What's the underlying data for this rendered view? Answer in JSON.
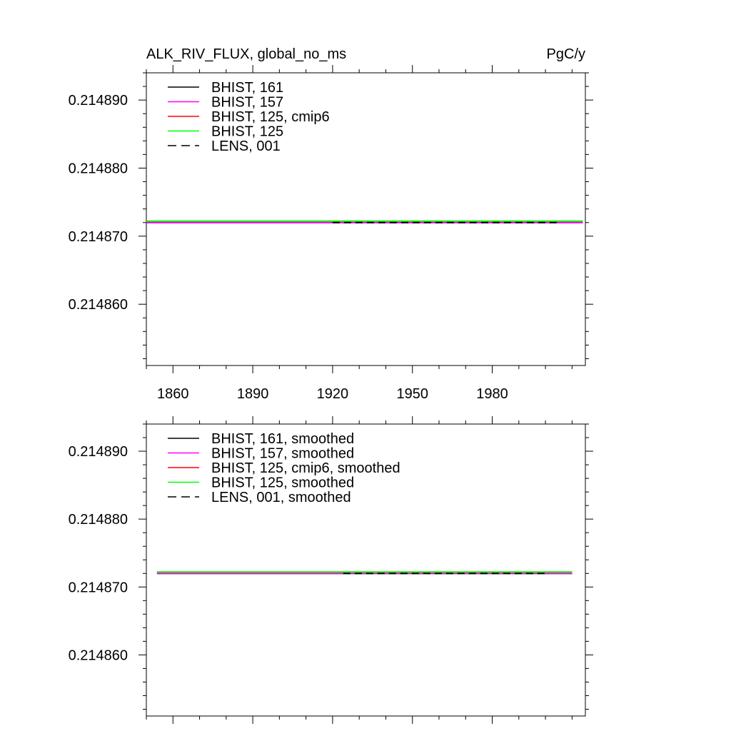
{
  "header": {
    "left_title": "ALK_RIV_FLUX, global_no_ms",
    "right_title": "PgC/y"
  },
  "chart_data": [
    {
      "type": "line",
      "title": "ALK_RIV_FLUX, global_no_ms",
      "units": "PgC/y",
      "xlim": [
        1850,
        2015
      ],
      "ylim": [
        0.214851,
        0.214894
      ],
      "x_ticks": [
        1860,
        1890,
        1920,
        1950,
        1980
      ],
      "x_tick_labels": [
        "1860",
        "1890",
        "1920",
        "1950",
        "1980"
      ],
      "y_ticks": [
        0.21486,
        0.21487,
        0.21488,
        0.21489
      ],
      "y_tick_labels": [
        "0.214860",
        "0.214870",
        "0.214880",
        "0.214890"
      ],
      "legend_position": "top-left",
      "series": [
        {
          "name": "BHIST, 161",
          "color": "#000000",
          "dash": "solid",
          "x": [
            1850,
            2014
          ],
          "y": [
            0.214872,
            0.214872
          ]
        },
        {
          "name": "BHIST, 157",
          "color": "#ff00ff",
          "dash": "solid",
          "x": [
            1850,
            2014
          ],
          "y": [
            0.214872,
            0.214872
          ]
        },
        {
          "name": "BHIST, 125, cmip6",
          "color": "#ff0000",
          "dash": "solid",
          "x": [
            1850,
            2014
          ],
          "y": [
            0.2148722,
            0.2148722
          ]
        },
        {
          "name": "BHIST, 125",
          "color": "#00ff00",
          "dash": "solid",
          "x": [
            1850,
            2014
          ],
          "y": [
            0.2148722,
            0.2148722
          ]
        },
        {
          "name": "LENS, 001",
          "color": "#000000",
          "dash": "dashed",
          "x": [
            1920,
            2005
          ],
          "y": [
            0.214872,
            0.214872
          ]
        }
      ]
    },
    {
      "type": "line",
      "xlim": [
        1850,
        2015
      ],
      "ylim": [
        0.214851,
        0.214894
      ],
      "x_ticks": [
        1860,
        1890,
        1920,
        1950,
        1980
      ],
      "x_tick_labels": [],
      "y_ticks": [
        0.21486,
        0.21487,
        0.21488,
        0.21489
      ],
      "y_tick_labels": [
        "0.214860",
        "0.214870",
        "0.214880",
        "0.214890"
      ],
      "legend_position": "top-left",
      "series": [
        {
          "name": "BHIST, 161, smoothed",
          "color": "#000000",
          "dash": "solid",
          "x": [
            1854,
            2010
          ],
          "y": [
            0.214872,
            0.214872
          ]
        },
        {
          "name": "BHIST, 157, smoothed",
          "color": "#ff00ff",
          "dash": "solid",
          "x": [
            1854,
            2010
          ],
          "y": [
            0.214872,
            0.214872
          ]
        },
        {
          "name": "BHIST, 125, cmip6, smoothed",
          "color": "#ff0000",
          "dash": "solid",
          "x": [
            1854,
            2010
          ],
          "y": [
            0.2148722,
            0.2148722
          ]
        },
        {
          "name": "BHIST, 125, smoothed",
          "color": "#00ff00",
          "dash": "solid",
          "x": [
            1854,
            2010
          ],
          "y": [
            0.2148722,
            0.2148722
          ]
        },
        {
          "name": "LENS, 001, smoothed",
          "color": "#000000",
          "dash": "dashed",
          "x": [
            1924,
            2001
          ],
          "y": [
            0.214872,
            0.214872
          ]
        }
      ]
    }
  ]
}
